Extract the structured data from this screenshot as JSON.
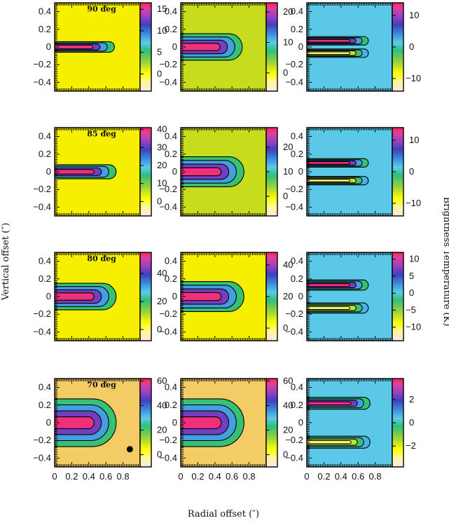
{
  "figure": {
    "xlabel": "Radial offset (″)",
    "ylabel": "Vertical offset (″)",
    "colorbar_label": "Brightness Temperature (K)"
  },
  "chart_data": [
    {
      "type": "heatmap",
      "row": 0,
      "col": 0,
      "annotation": "90 deg",
      "xlim": [
        0,
        1
      ],
      "ylim": [
        -0.5,
        0.5
      ],
      "x_ticks": [
        "0",
        "0.2",
        "0.4",
        "0.6",
        "0.8"
      ],
      "y_ticks": [
        "0.4",
        "0.2",
        "0",
        "−0.2",
        "−0.4"
      ],
      "colorbar": {
        "min": -4,
        "max": 16.5,
        "ticks": [
          "15",
          "10",
          "5",
          "0"
        ],
        "tick_values": [
          15,
          10,
          5,
          0
        ]
      },
      "background_color": "#f6f000",
      "lobe": {
        "kind": "center",
        "extent_x": 0.7,
        "half_height": 0.05
      }
    },
    {
      "type": "heatmap",
      "row": 0,
      "col": 1,
      "annotation": "",
      "xlim": [
        0,
        1
      ],
      "ylim": [
        -0.5,
        0.5
      ],
      "x_ticks": [
        "0",
        "0.2",
        "0.4",
        "0.6",
        "0.8"
      ],
      "y_ticks": [
        "0.4",
        "0.2",
        "0",
        "−0.2",
        "−0.4"
      ],
      "colorbar": {
        "min": -6,
        "max": 23,
        "ticks": [
          "20",
          "10",
          "0"
        ],
        "tick_values": [
          20,
          10,
          0
        ]
      },
      "background_color": "#c8dc1e",
      "lobe": {
        "kind": "center",
        "extent_x": 0.72,
        "half_height": 0.14
      }
    },
    {
      "type": "heatmap",
      "row": 0,
      "col": 2,
      "annotation": "",
      "xlim": [
        0,
        1
      ],
      "ylim": [
        -0.5,
        0.5
      ],
      "x_ticks": [
        "0",
        "0.2",
        "0.4",
        "0.6",
        "0.8"
      ],
      "y_ticks": [
        "0.4",
        "0.2",
        "0",
        "−0.2",
        "−0.4"
      ],
      "colorbar": {
        "min": -14,
        "max": 14,
        "ticks": [
          "10",
          "0",
          "−10"
        ],
        "tick_values": [
          10,
          0,
          -10
        ]
      },
      "background_color": "#5ac8e6",
      "lobe": {
        "kind": "double",
        "extent_x": 0.72,
        "half_height": 0.04,
        "offset": 0.07
      }
    },
    {
      "type": "heatmap",
      "row": 1,
      "col": 0,
      "annotation": "85 deg",
      "xlim": [
        0,
        1
      ],
      "ylim": [
        -0.5,
        0.5
      ],
      "x_ticks": [
        "0",
        "0.2",
        "0.4",
        "0.6",
        "0.8"
      ],
      "y_ticks": [
        "0.4",
        "0.2",
        "0",
        "−0.2",
        "−0.4"
      ],
      "colorbar": {
        "min": -8,
        "max": 41,
        "ticks": [
          "40",
          "30",
          "20",
          "10",
          "0"
        ],
        "tick_values": [
          40,
          30,
          20,
          10,
          0
        ]
      },
      "background_color": "#f6f000",
      "lobe": {
        "kind": "center",
        "extent_x": 0.72,
        "half_height": 0.07
      }
    },
    {
      "type": "heatmap",
      "row": 1,
      "col": 1,
      "annotation": "",
      "xlim": [
        0,
        1
      ],
      "ylim": [
        -0.5,
        0.5
      ],
      "x_ticks": [
        "0",
        "0.2",
        "0.4",
        "0.6",
        "0.8"
      ],
      "y_ticks": [
        "0.4",
        "0.2",
        "0",
        "−0.2",
        "−0.4"
      ],
      "colorbar": {
        "min": -8,
        "max": 28,
        "ticks": [
          "20",
          "10",
          "0"
        ],
        "tick_values": [
          20,
          10,
          0
        ]
      },
      "background_color": "#c8dc1e",
      "lobe": {
        "kind": "center",
        "extent_x": 0.74,
        "half_height": 0.16
      }
    },
    {
      "type": "heatmap",
      "row": 1,
      "col": 2,
      "annotation": "",
      "xlim": [
        0,
        1
      ],
      "ylim": [
        -0.5,
        0.5
      ],
      "x_ticks": [
        "0",
        "0.2",
        "0.4",
        "0.6",
        "0.8"
      ],
      "y_ticks": [
        "0.4",
        "0.2",
        "0",
        "−0.2",
        "−0.4"
      ],
      "colorbar": {
        "min": -14,
        "max": 14,
        "ticks": [
          "10",
          "0",
          "−10"
        ],
        "tick_values": [
          10,
          0,
          -10
        ]
      },
      "background_color": "#5ac8e6",
      "lobe": {
        "kind": "double",
        "extent_x": 0.72,
        "half_height": 0.04,
        "offset": 0.1
      }
    },
    {
      "type": "heatmap",
      "row": 2,
      "col": 0,
      "annotation": "80 deg",
      "xlim": [
        0,
        1
      ],
      "ylim": [
        -0.5,
        0.5
      ],
      "x_ticks": [
        "0",
        "0.2",
        "0.4",
        "0.6",
        "0.8"
      ],
      "y_ticks": [
        "0.4",
        "0.2",
        "0",
        "−0.2",
        "−0.4"
      ],
      "colorbar": {
        "min": -8,
        "max": 55,
        "ticks": [
          "40",
          "20",
          "0"
        ],
        "tick_values": [
          40,
          20,
          0
        ]
      },
      "background_color": "#f6f000",
      "lobe": {
        "kind": "center",
        "extent_x": 0.72,
        "half_height": 0.14
      }
    },
    {
      "type": "heatmap",
      "row": 2,
      "col": 1,
      "annotation": "",
      "xlim": [
        0,
        1
      ],
      "ylim": [
        -0.5,
        0.5
      ],
      "x_ticks": [
        "0",
        "0.2",
        "0.4",
        "0.6",
        "0.8"
      ],
      "y_ticks": [
        "0.4",
        "0.2",
        "0",
        "−0.2",
        "−0.4"
      ],
      "colorbar": {
        "min": -8,
        "max": 48,
        "ticks": [
          "40",
          "20",
          "0"
        ],
        "tick_values": [
          40,
          20,
          0
        ]
      },
      "background_color": "#f6f000",
      "lobe": {
        "kind": "center",
        "extent_x": 0.74,
        "half_height": 0.16
      }
    },
    {
      "type": "heatmap",
      "row": 2,
      "col": 2,
      "annotation": "",
      "xlim": [
        0,
        1
      ],
      "ylim": [
        -0.5,
        0.5
      ],
      "x_ticks": [
        "0",
        "0.2",
        "0.4",
        "0.6",
        "0.8"
      ],
      "y_ticks": [
        "0.4",
        "0.2",
        "0",
        "−0.2",
        "−0.4"
      ],
      "colorbar": {
        "min": -14,
        "max": 12,
        "ticks": [
          "10",
          "5",
          "0",
          "−5",
          "−10"
        ],
        "tick_values": [
          10,
          5,
          0,
          -5,
          -10
        ]
      },
      "background_color": "#5ac8e6",
      "lobe": {
        "kind": "double",
        "extent_x": 0.72,
        "half_height": 0.05,
        "offset": 0.13
      }
    },
    {
      "type": "heatmap",
      "row": 3,
      "col": 0,
      "annotation": "70 deg",
      "xlim": [
        0,
        1
      ],
      "ylim": [
        -0.5,
        0.5
      ],
      "x_ticks": [
        "0",
        "0.2",
        "0.4",
        "0.6",
        "0.8"
      ],
      "y_ticks": [
        "0.4",
        "0.2",
        "0",
        "−0.2",
        "−0.4"
      ],
      "colorbar": {
        "min": -10,
        "max": 62,
        "ticks": [
          "60",
          "40",
          "20",
          "0"
        ],
        "tick_values": [
          60,
          40,
          20,
          0
        ]
      },
      "background_color": "#f4cc66",
      "lobe": {
        "kind": "center",
        "extent_x": 0.72,
        "half_height": 0.26
      },
      "beam": {
        "x": 0.88,
        "y": -0.3
      }
    },
    {
      "type": "heatmap",
      "row": 3,
      "col": 1,
      "annotation": "",
      "xlim": [
        0,
        1
      ],
      "ylim": [
        -0.5,
        0.5
      ],
      "x_ticks": [
        "0",
        "0.2",
        "0.4",
        "0.6",
        "0.8"
      ],
      "y_ticks": [
        "0.4",
        "0.2",
        "0",
        "−0.2",
        "−0.4"
      ],
      "colorbar": {
        "min": -10,
        "max": 62,
        "ticks": [
          "60",
          "40",
          "20",
          "0"
        ],
        "tick_values": [
          60,
          40,
          20,
          0
        ]
      },
      "background_color": "#f4cc66",
      "lobe": {
        "kind": "center",
        "extent_x": 0.74,
        "half_height": 0.26
      }
    },
    {
      "type": "heatmap",
      "row": 3,
      "col": 2,
      "annotation": "",
      "xlim": [
        0,
        1
      ],
      "ylim": [
        -0.5,
        0.5
      ],
      "x_ticks": [
        "0",
        "0.2",
        "0.4",
        "0.6",
        "0.8"
      ],
      "y_ticks": [
        "0.4",
        "0.2",
        "0",
        "−0.2",
        "−0.4"
      ],
      "colorbar": {
        "min": -3.8,
        "max": 3.8,
        "ticks": [
          "2",
          "0",
          "−2"
        ],
        "tick_values": [
          2,
          0,
          -2
        ]
      },
      "background_color": "#5ac8e6",
      "lobe": {
        "kind": "double",
        "extent_x": 0.74,
        "half_height": 0.06,
        "offset": 0.22
      }
    }
  ]
}
